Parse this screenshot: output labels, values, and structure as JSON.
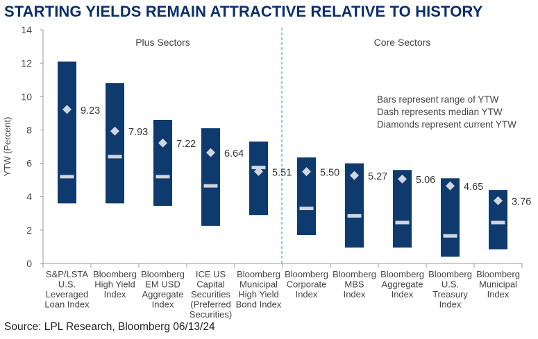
{
  "title": "STARTING YIELDS REMAIN ATTRACTIVE RELATIVE TO HISTORY",
  "source": "Source: LPL Research, Bloomberg 06/13/24",
  "colors": {
    "title": "#0b2f6b",
    "bar": "#0f3a6e",
    "marker": "#cfd6df",
    "divider": "#4aa3d8",
    "axis": "#9a9a9a"
  },
  "chart_data": {
    "type": "range-bar",
    "ylabel": "YTW (Percent)",
    "ylim": [
      0,
      14
    ],
    "yticks": [
      0,
      2,
      4,
      6,
      8,
      10,
      12,
      14
    ],
    "groups": [
      {
        "label": "Plus Sectors",
        "start": 0,
        "end": 4
      },
      {
        "label": "Core Sectors",
        "start": 5,
        "end": 9
      }
    ],
    "legend": [
      "Bars represent range of YTW",
      "Dash represents median YTW",
      "Diamonds represent current YTW"
    ],
    "categories": [
      {
        "lines": [
          "S&P/LSTA",
          "U.S.",
          "Leveraged",
          "Loan Index"
        ],
        "min": 3.6,
        "max": 12.1,
        "median": 5.2,
        "current": 9.23,
        "current_label": "9.23"
      },
      {
        "lines": [
          "Bloomberg",
          "High Yield",
          "Index"
        ],
        "min": 3.6,
        "max": 10.8,
        "median": 6.4,
        "current": 7.93,
        "current_label": "7.93"
      },
      {
        "lines": [
          "Bloomberg",
          "EM USD",
          "Aggregate",
          "Index"
        ],
        "min": 3.45,
        "max": 8.6,
        "median": 5.2,
        "current": 7.22,
        "current_label": "7.22"
      },
      {
        "lines": [
          "ICE US",
          "Capital",
          "Securities",
          "(Preferred",
          "Securities)"
        ],
        "min": 2.25,
        "max": 8.1,
        "median": 4.65,
        "current": 6.64,
        "current_label": "6.64"
      },
      {
        "lines": [
          "Bloomberg",
          "Municipal",
          "High Yield",
          "Bond Index"
        ],
        "min": 2.9,
        "max": 7.3,
        "median": 5.75,
        "current": 5.51,
        "current_label": "5.51"
      },
      {
        "lines": [
          "Bloomberg",
          "Corporate",
          "Index"
        ],
        "min": 1.7,
        "max": 6.35,
        "median": 3.3,
        "current": 5.5,
        "current_label": "5.50"
      },
      {
        "lines": [
          "Bloomberg",
          "MBS",
          "Index"
        ],
        "min": 0.95,
        "max": 6.0,
        "median": 2.85,
        "current": 5.27,
        "current_label": "5.27"
      },
      {
        "lines": [
          "Bloomberg",
          "Aggregate",
          "Index"
        ],
        "min": 0.95,
        "max": 5.6,
        "median": 2.45,
        "current": 5.06,
        "current_label": "5.06"
      },
      {
        "lines": [
          "Bloomberg",
          "U.S.",
          "Treasury",
          "Index"
        ],
        "min": 0.4,
        "max": 5.1,
        "median": 1.65,
        "current": 4.65,
        "current_label": "4.65"
      },
      {
        "lines": [
          "Bloomberg",
          "Municipal",
          "Index"
        ],
        "min": 0.85,
        "max": 4.4,
        "median": 2.45,
        "current": 3.76,
        "current_label": "3.76"
      }
    ]
  }
}
